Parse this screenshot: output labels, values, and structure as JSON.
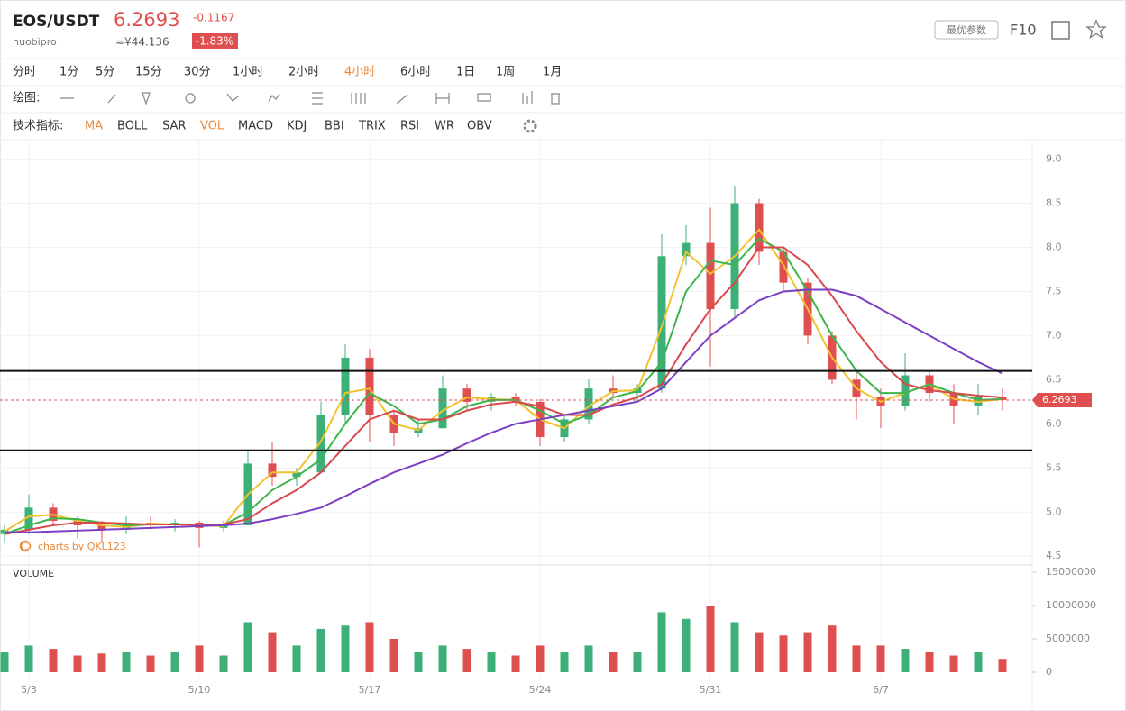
{
  "header": {
    "pair": "EOS/USDT",
    "exchange": "huobipro",
    "price": "6.2693",
    "change": "-0.1167",
    "cny": "≈¥44.136",
    "change_pct": "-1.83%",
    "best_params": "最优参数",
    "f10": "F10",
    "periods": [
      "分时",
      "1分",
      "5分",
      "15分",
      "30分",
      "1小时",
      "2小时",
      "4小时",
      "6小时",
      "1日",
      "1周",
      "1月"
    ],
    "draw_label": "绘图:",
    "indicator_label": "技术指标:",
    "indicators": [
      "MA",
      "BOLL",
      "SAR",
      "VOL",
      "MACD",
      "KDJ",
      "BBI",
      "TRIX",
      "RSI",
      "WR",
      "OBV"
    ]
  },
  "chart_data": {
    "type": "candlestick",
    "volume_title": "VOLUME",
    "watermark": "charts by QKL123",
    "categories": [
      null,
      "5/3",
      null,
      null,
      null,
      null,
      null,
      null,
      "5/10",
      null,
      null,
      null,
      null,
      null,
      null,
      "5/17",
      null,
      null,
      null,
      null,
      null,
      null,
      "5/24",
      null,
      null,
      null,
      null,
      null,
      null,
      "5/31",
      null,
      null,
      null,
      null,
      null,
      null,
      "6/7",
      null,
      null,
      null,
      null,
      null
    ],
    "open": [
      4.75,
      4.8,
      5.05,
      4.9,
      4.85,
      4.8,
      4.88,
      4.85,
      4.88,
      4.82,
      4.85,
      5.55,
      5.4,
      5.45,
      6.1,
      6.75,
      6.1,
      5.9,
      5.95,
      6.4,
      6.25,
      6.3,
      6.25,
      5.85,
      6.05,
      6.4,
      6.35,
      6.4,
      7.9,
      8.05,
      7.3,
      8.5,
      7.95,
      7.6,
      7.0,
      6.5,
      6.3,
      6.2,
      6.55,
      6.35,
      6.2,
      6.3
    ],
    "high": [
      4.85,
      5.2,
      5.1,
      4.95,
      4.9,
      4.95,
      4.95,
      4.92,
      4.9,
      4.9,
      5.7,
      5.8,
      5.5,
      6.25,
      6.9,
      6.85,
      6.15,
      6.05,
      6.55,
      6.45,
      6.35,
      6.35,
      6.28,
      6.1,
      6.5,
      6.55,
      6.45,
      8.15,
      8.25,
      8.45,
      8.7,
      8.55,
      8.0,
      7.65,
      7.05,
      6.6,
      6.4,
      6.8,
      6.6,
      6.45,
      6.45,
      6.4
    ],
    "low": [
      4.65,
      4.75,
      4.85,
      4.7,
      4.65,
      4.75,
      4.8,
      4.78,
      4.6,
      4.78,
      4.85,
      5.3,
      5.3,
      5.45,
      6.0,
      5.8,
      5.75,
      5.85,
      5.95,
      6.15,
      6.15,
      6.2,
      5.75,
      5.8,
      6.0,
      6.3,
      6.25,
      6.35,
      7.8,
      6.65,
      7.2,
      7.8,
      7.5,
      6.9,
      6.45,
      6.05,
      5.95,
      6.15,
      6.25,
      6.0,
      6.1,
      6.15
    ],
    "close": [
      4.8,
      5.05,
      4.9,
      4.85,
      4.8,
      4.88,
      4.85,
      4.88,
      4.82,
      4.85,
      5.55,
      5.4,
      5.45,
      6.1,
      6.75,
      6.1,
      5.9,
      5.95,
      6.4,
      6.25,
      6.3,
      6.25,
      5.85,
      6.05,
      6.4,
      6.35,
      6.4,
      7.9,
      8.05,
      7.3,
      8.5,
      7.95,
      7.6,
      7.0,
      6.5,
      6.3,
      6.2,
      6.55,
      6.35,
      6.2,
      6.3,
      6.27
    ],
    "volume": [
      3000000,
      4000000,
      3500000,
      2500000,
      2800000,
      3000000,
      2500000,
      3000000,
      4000000,
      2500000,
      7500000,
      6000000,
      4000000,
      6500000,
      7000000,
      7500000,
      5000000,
      3000000,
      4000000,
      3500000,
      3000000,
      2500000,
      4000000,
      3000000,
      4000000,
      3000000,
      3000000,
      9000000,
      8000000,
      10000000,
      7500000,
      6000000,
      5500000,
      6000000,
      7000000,
      4000000,
      4000000,
      3500000,
      3000000,
      2500000,
      3000000,
      2000000
    ],
    "up_color": "#3db07a",
    "down_color": "#e04f4f",
    "series": [
      {
        "color": "#f2c12e",
        "values": [
          4.78,
          4.95,
          4.97,
          4.9,
          4.85,
          4.83,
          4.87,
          4.86,
          4.85,
          4.84,
          5.2,
          5.45,
          5.45,
          5.8,
          6.35,
          6.4,
          6.0,
          5.93,
          6.15,
          6.3,
          6.28,
          6.27,
          6.05,
          5.95,
          6.2,
          6.37,
          6.38,
          7.1,
          7.95,
          7.7,
          7.9,
          8.2,
          7.8,
          7.3,
          6.75,
          6.4,
          6.25,
          6.35,
          6.45,
          6.28,
          6.25,
          6.28
        ]
      },
      {
        "color": "#3cb54a",
        "values": [
          4.75,
          4.85,
          4.93,
          4.92,
          4.88,
          4.85,
          4.86,
          4.86,
          4.86,
          4.85,
          5.0,
          5.25,
          5.4,
          5.6,
          6.0,
          6.35,
          6.2,
          6.0,
          6.05,
          6.2,
          6.27,
          6.27,
          6.15,
          6.0,
          6.1,
          6.3,
          6.37,
          6.7,
          7.5,
          7.85,
          7.8,
          8.1,
          7.95,
          7.5,
          7.0,
          6.6,
          6.35,
          6.35,
          6.45,
          6.35,
          6.27,
          6.28
        ]
      },
      {
        "color": "#d9484a",
        "values": [
          4.75,
          4.8,
          4.85,
          4.88,
          4.88,
          4.87,
          4.86,
          4.86,
          4.86,
          4.86,
          4.92,
          5.1,
          5.25,
          5.45,
          5.75,
          6.05,
          6.15,
          6.05,
          6.05,
          6.15,
          6.22,
          6.25,
          6.2,
          6.1,
          6.1,
          6.22,
          6.3,
          6.45,
          6.9,
          7.3,
          7.6,
          8.0,
          8.0,
          7.8,
          7.45,
          7.05,
          6.7,
          6.45,
          6.38,
          6.35,
          6.32,
          6.3
        ]
      },
      {
        "color": "#7b3fc4",
        "values": [
          4.77,
          4.77,
          4.78,
          4.79,
          4.8,
          4.81,
          4.82,
          4.83,
          4.84,
          4.85,
          4.87,
          4.92,
          4.98,
          5.05,
          5.18,
          5.32,
          5.45,
          5.55,
          5.65,
          5.78,
          5.9,
          6.0,
          6.05,
          6.1,
          6.15,
          6.2,
          6.25,
          6.4,
          6.7,
          7.0,
          7.2,
          7.4,
          7.5,
          7.52,
          7.52,
          7.45,
          7.3,
          7.15,
          7.0,
          6.85,
          6.7,
          6.57
        ]
      }
    ],
    "hlines": [
      6.6,
      5.7
    ],
    "last_price": 6.2693,
    "ylim": [
      4.4,
      9.2
    ],
    "yticks": [
      {
        "value": 4.5,
        "label": "4.5"
      },
      {
        "value": 5.0,
        "label": "5.0"
      },
      {
        "value": 5.5,
        "label": "5.5"
      },
      {
        "value": 6.0,
        "label": "6.0"
      },
      {
        "value": 6.5,
        "label": "6.5"
      },
      {
        "value": 7.0,
        "label": "7.0"
      },
      {
        "value": 7.5,
        "label": "7.5"
      },
      {
        "value": 8.0,
        "label": "8.0"
      },
      {
        "value": 8.5,
        "label": "8.5"
      },
      {
        "value": 9.0,
        "label": "9.0"
      }
    ],
    "y2lim": [
      0,
      15000000
    ],
    "y2ticks": [
      0,
      5000000,
      10000000,
      15000000
    ],
    "grid": true
  }
}
